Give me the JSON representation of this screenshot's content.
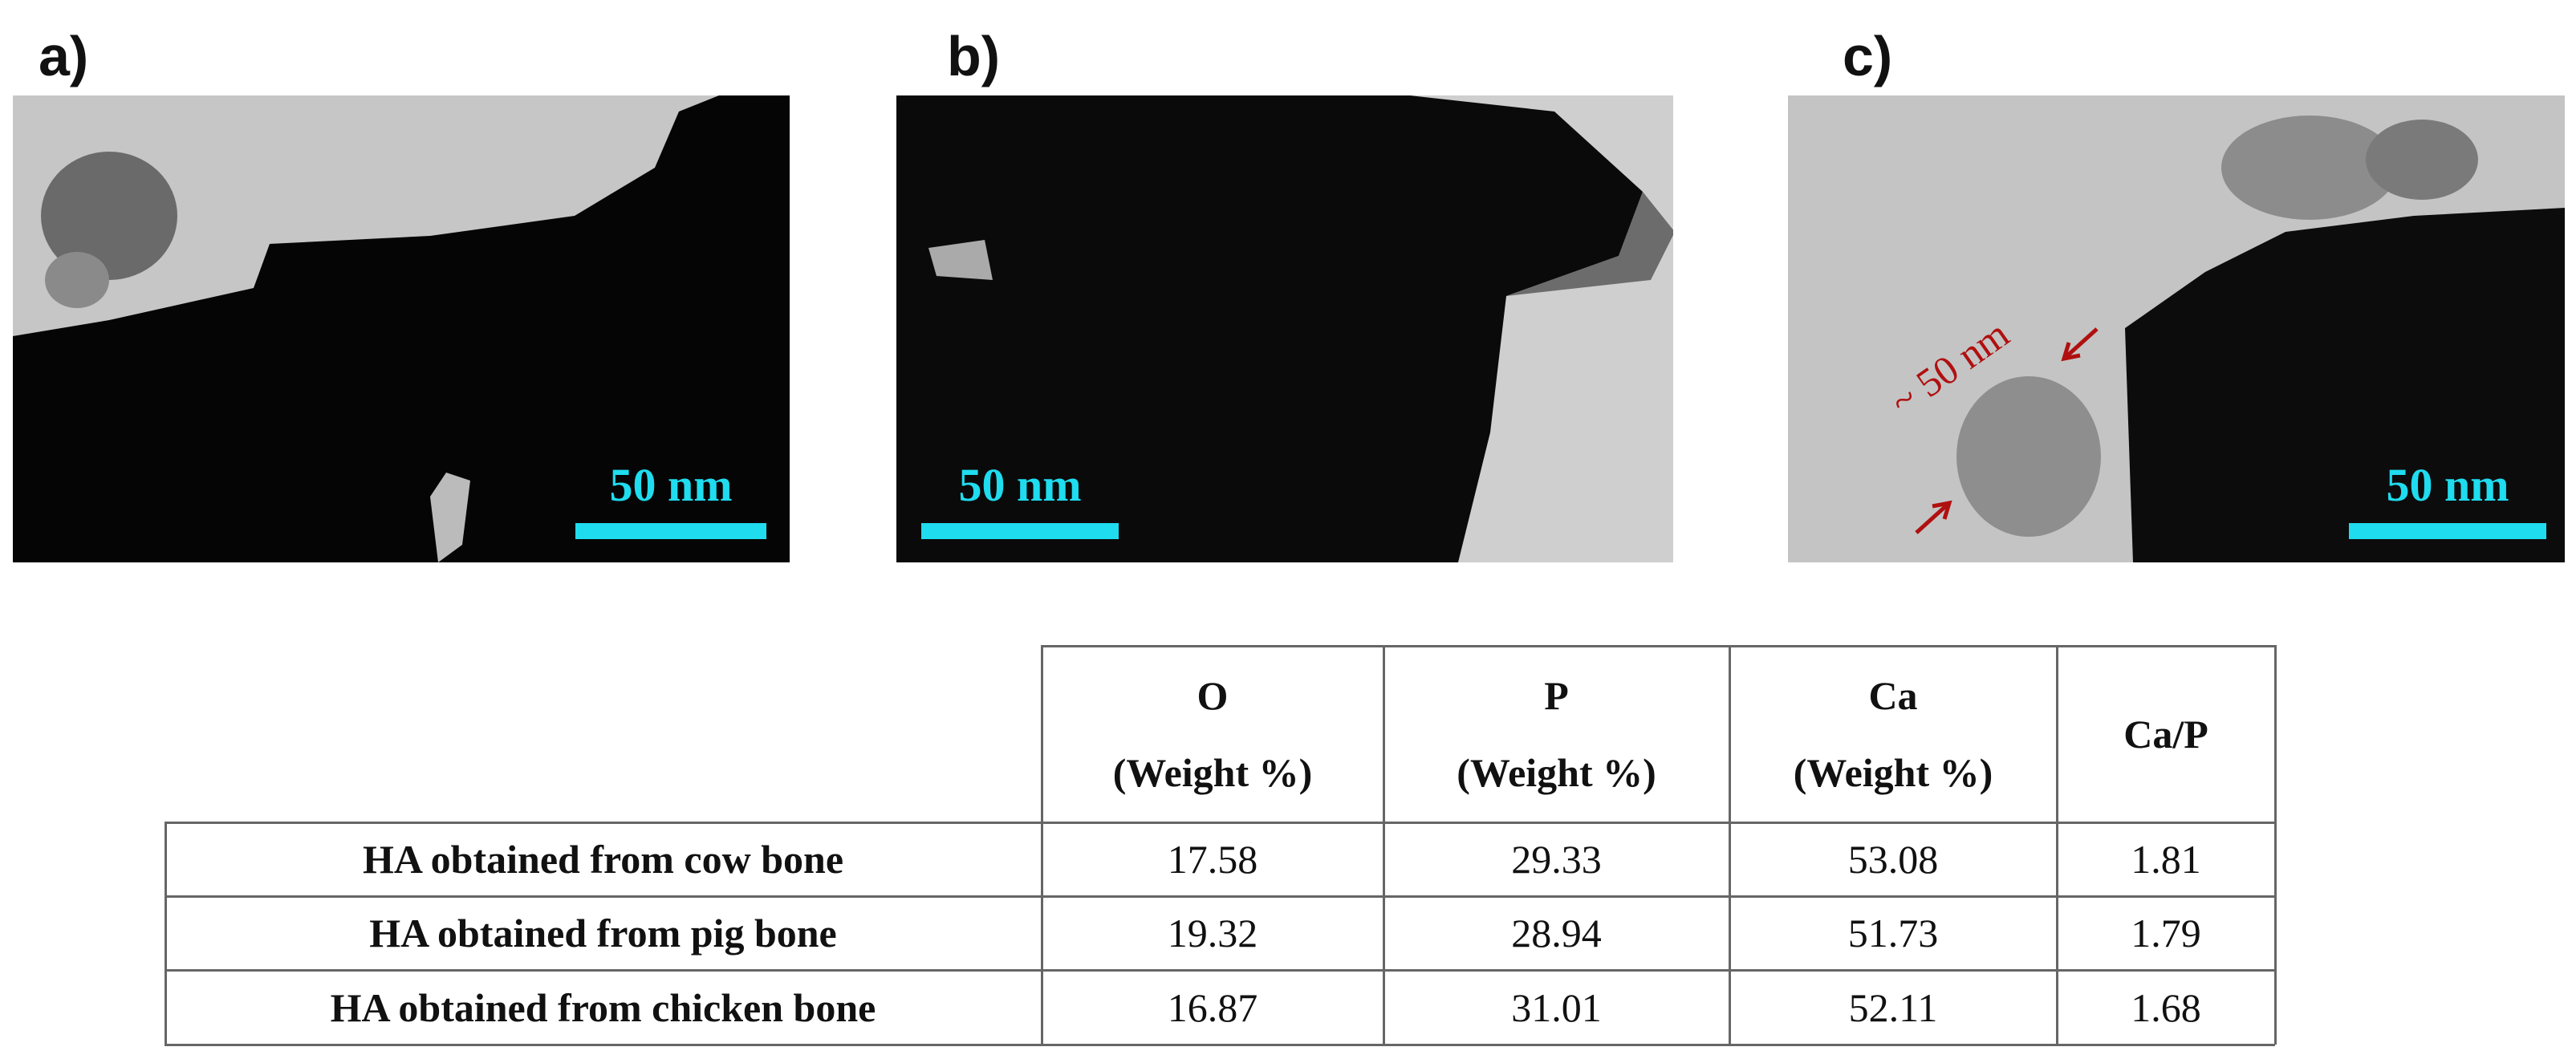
{
  "panels": [
    {
      "label": "a)",
      "scale_bar": "50 nm"
    },
    {
      "label": "b)",
      "scale_bar": "50 nm"
    },
    {
      "label": "c)",
      "scale_bar": "50 nm",
      "annotation": "~ 50 nm"
    }
  ],
  "table": {
    "header_elements": [
      "O",
      "P",
      "Ca",
      "Ca/P"
    ],
    "header_units": [
      "(Weight %)",
      "(Weight %)",
      "(Weight %)"
    ],
    "rows": [
      [
        "HA obtained from cow bone",
        "17.58",
        "29.33",
        "53.08",
        "1.81"
      ],
      [
        "HA obtained from pig bone",
        "19.32",
        "28.94",
        "51.73",
        "1.79"
      ],
      [
        "HA obtained from chicken bone",
        "16.87",
        "31.01",
        "52.11",
        "1.68"
      ]
    ]
  }
}
